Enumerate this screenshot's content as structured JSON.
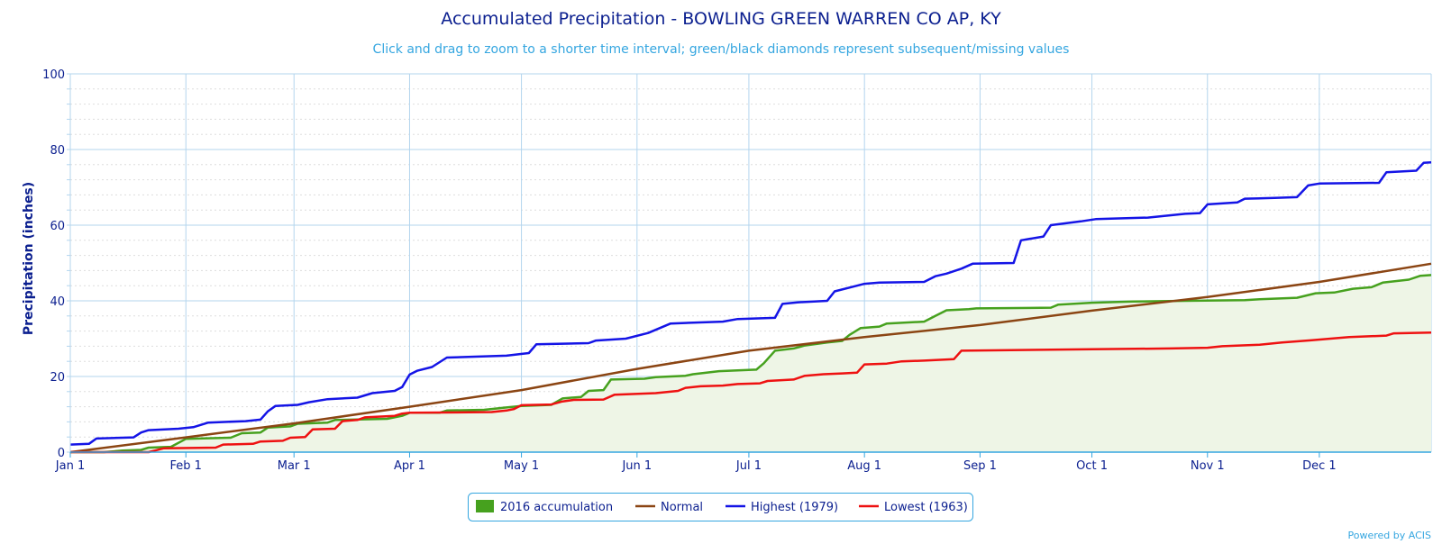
{
  "chart_data": {
    "type": "line",
    "title": "Accumulated Precipitation - BOWLING GREEN WARREN CO AP, KY",
    "subtitle": "Click and drag to zoom to a shorter time interval; green/black diamonds represent subsequent/missing values",
    "ylabel": "Precipitation (inches)",
    "xlabel": "",
    "ylim": [
      0,
      100
    ],
    "xlim_day": [
      1,
      366
    ],
    "yticks": [
      0,
      20,
      40,
      60,
      80,
      100
    ],
    "xticks": [
      {
        "label": "Jan 1",
        "day": 1
      },
      {
        "label": "Feb 1",
        "day": 32
      },
      {
        "label": "Mar 1",
        "day": 61
      },
      {
        "label": "Apr 1",
        "day": 92
      },
      {
        "label": "May 1",
        "day": 122
      },
      {
        "label": "Jun 1",
        "day": 153
      },
      {
        "label": "Jul 1",
        "day": 183
      },
      {
        "label": "Aug 1",
        "day": 214
      },
      {
        "label": "Sep 1",
        "day": 245
      },
      {
        "label": "Oct 1",
        "day": 275
      },
      {
        "label": "Nov 1",
        "day": 306
      },
      {
        "label": "Dec 1",
        "day": 336
      }
    ],
    "credit": "Powered by ACIS",
    "series": [
      {
        "name": "2016 accumulation",
        "color": "#46a11e",
        "fill": "#eef5e6",
        "legend_symbol": "box",
        "points": [
          [
            1,
            0
          ],
          [
            10,
            0
          ],
          [
            15,
            0.4
          ],
          [
            20,
            0.6
          ],
          [
            22,
            1.2
          ],
          [
            28,
            1.4
          ],
          [
            32,
            3.5
          ],
          [
            44,
            3.8
          ],
          [
            47,
            5
          ],
          [
            52,
            5.2
          ],
          [
            54,
            6.5
          ],
          [
            60,
            6.8
          ],
          [
            62,
            7.5
          ],
          [
            70,
            7.8
          ],
          [
            72,
            8.5
          ],
          [
            86,
            8.8
          ],
          [
            90,
            9.6
          ],
          [
            92,
            10.4
          ],
          [
            100,
            10.4
          ],
          [
            102,
            11
          ],
          [
            112,
            11.2
          ],
          [
            118,
            11.8
          ],
          [
            122,
            12.2
          ],
          [
            130,
            12.5
          ],
          [
            133,
            14.2
          ],
          [
            138,
            14.6
          ],
          [
            140,
            16.2
          ],
          [
            144,
            16.4
          ],
          [
            146,
            19.2
          ],
          [
            155,
            19.4
          ],
          [
            158,
            19.8
          ],
          [
            166,
            20.2
          ],
          [
            168,
            20.6
          ],
          [
            175,
            21.4
          ],
          [
            185,
            21.8
          ],
          [
            187,
            23.5
          ],
          [
            190,
            26.8
          ],
          [
            195,
            27.4
          ],
          [
            198,
            28.2
          ],
          [
            204,
            29
          ],
          [
            208,
            29.4
          ],
          [
            210,
            31
          ],
          [
            213,
            32.8
          ],
          [
            218,
            33.2
          ],
          [
            220,
            34
          ],
          [
            230,
            34.5
          ],
          [
            233,
            36
          ],
          [
            236,
            37.5
          ],
          [
            242,
            37.8
          ],
          [
            244,
            38
          ],
          [
            264,
            38.2
          ],
          [
            266,
            39
          ],
          [
            275,
            39.5
          ],
          [
            286,
            39.8
          ],
          [
            300,
            40
          ],
          [
            316,
            40.2
          ],
          [
            320,
            40.4
          ],
          [
            330,
            40.8
          ],
          [
            335,
            42
          ],
          [
            340,
            42.2
          ],
          [
            345,
            43.2
          ],
          [
            350,
            43.6
          ],
          [
            353,
            44.8
          ],
          [
            360,
            45.6
          ],
          [
            363,
            46.6
          ],
          [
            366,
            46.8
          ]
        ]
      },
      {
        "name": "Normal",
        "color": "#8b4513",
        "legend_symbol": "line",
        "points": [
          [
            1,
            0
          ],
          [
            32,
            3.9
          ],
          [
            61,
            7.6
          ],
          [
            92,
            12
          ],
          [
            122,
            16.4
          ],
          [
            153,
            22
          ],
          [
            183,
            26.8
          ],
          [
            214,
            30.4
          ],
          [
            245,
            33.6
          ],
          [
            275,
            37.4
          ],
          [
            306,
            41
          ],
          [
            336,
            45
          ],
          [
            366,
            49.8
          ]
        ]
      },
      {
        "name": "Highest (1979)",
        "color": "#1414e6",
        "legend_symbol": "line",
        "points": [
          [
            1,
            2
          ],
          [
            6,
            2.2
          ],
          [
            8,
            3.6
          ],
          [
            18,
            3.9
          ],
          [
            20,
            5.2
          ],
          [
            22,
            5.8
          ],
          [
            30,
            6.2
          ],
          [
            34,
            6.6
          ],
          [
            38,
            7.8
          ],
          [
            48,
            8.2
          ],
          [
            52,
            8.6
          ],
          [
            54,
            10.8
          ],
          [
            56,
            12.2
          ],
          [
            62,
            12.5
          ],
          [
            65,
            13.2
          ],
          [
            70,
            14
          ],
          [
            78,
            14.4
          ],
          [
            82,
            15.6
          ],
          [
            88,
            16.2
          ],
          [
            90,
            17.2
          ],
          [
            92,
            20.5
          ],
          [
            94,
            21.5
          ],
          [
            98,
            22.5
          ],
          [
            102,
            25
          ],
          [
            118,
            25.5
          ],
          [
            124,
            26.2
          ],
          [
            126,
            28.5
          ],
          [
            140,
            28.8
          ],
          [
            142,
            29.5
          ],
          [
            150,
            30
          ],
          [
            156,
            31.5
          ],
          [
            162,
            34
          ],
          [
            176,
            34.5
          ],
          [
            180,
            35.2
          ],
          [
            190,
            35.5
          ],
          [
            192,
            39.2
          ],
          [
            196,
            39.6
          ],
          [
            204,
            40
          ],
          [
            206,
            42.5
          ],
          [
            212,
            44
          ],
          [
            214,
            44.5
          ],
          [
            218,
            44.8
          ],
          [
            230,
            45
          ],
          [
            233,
            46.5
          ],
          [
            236,
            47.2
          ],
          [
            240,
            48.5
          ],
          [
            243,
            49.8
          ],
          [
            254,
            50
          ],
          [
            256,
            56
          ],
          [
            262,
            57
          ],
          [
            264,
            60
          ],
          [
            268,
            60.5
          ],
          [
            272,
            61
          ],
          [
            276,
            61.6
          ],
          [
            290,
            62
          ],
          [
            300,
            63
          ],
          [
            304,
            63.2
          ],
          [
            306,
            65.5
          ],
          [
            314,
            66
          ],
          [
            316,
            67
          ],
          [
            324,
            67.2
          ],
          [
            330,
            67.4
          ],
          [
            333,
            70.5
          ],
          [
            336,
            71
          ],
          [
            352,
            71.2
          ],
          [
            354,
            74
          ],
          [
            362,
            74.4
          ],
          [
            364,
            76.5
          ],
          [
            366,
            76.6
          ]
        ]
      },
      {
        "name": "Lowest (1963)",
        "color": "#ee1111",
        "legend_symbol": "line",
        "points": [
          [
            1,
            0
          ],
          [
            22,
            0
          ],
          [
            24,
            0.5
          ],
          [
            26,
            1
          ],
          [
            40,
            1.2
          ],
          [
            42,
            2
          ],
          [
            50,
            2.2
          ],
          [
            52,
            2.8
          ],
          [
            58,
            3
          ],
          [
            60,
            3.8
          ],
          [
            64,
            4
          ],
          [
            66,
            6
          ],
          [
            72,
            6.2
          ],
          [
            74,
            8.2
          ],
          [
            78,
            8.5
          ],
          [
            80,
            9.2
          ],
          [
            88,
            9.6
          ],
          [
            90,
            10.2
          ],
          [
            92,
            10.4
          ],
          [
            114,
            10.6
          ],
          [
            118,
            11
          ],
          [
            120,
            11.4
          ],
          [
            122,
            12.4
          ],
          [
            130,
            12.6
          ],
          [
            133,
            13.4
          ],
          [
            136,
            13.8
          ],
          [
            144,
            13.9
          ],
          [
            147,
            15.2
          ],
          [
            158,
            15.6
          ],
          [
            164,
            16.2
          ],
          [
            166,
            17
          ],
          [
            170,
            17.4
          ],
          [
            176,
            17.6
          ],
          [
            180,
            18
          ],
          [
            186,
            18.2
          ],
          [
            188,
            18.8
          ],
          [
            195,
            19.2
          ],
          [
            198,
            20.2
          ],
          [
            203,
            20.6
          ],
          [
            208,
            20.8
          ],
          [
            212,
            21
          ],
          [
            214,
            23.2
          ],
          [
            220,
            23.4
          ],
          [
            224,
            24
          ],
          [
            230,
            24.2
          ],
          [
            238,
            24.6
          ],
          [
            240,
            26.8
          ],
          [
            256,
            27
          ],
          [
            275,
            27.2
          ],
          [
            296,
            27.4
          ],
          [
            306,
            27.6
          ],
          [
            310,
            28
          ],
          [
            320,
            28.4
          ],
          [
            326,
            29
          ],
          [
            334,
            29.6
          ],
          [
            344,
            30.4
          ],
          [
            354,
            30.8
          ],
          [
            356,
            31.4
          ],
          [
            366,
            31.6
          ]
        ]
      }
    ]
  }
}
